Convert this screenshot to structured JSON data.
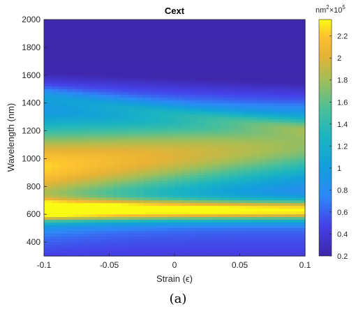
{
  "chart_data": {
    "type": "heatmap",
    "title": "Cext",
    "xlabel": "Strain (ϵ)",
    "ylabel": "Wavelength (nm)",
    "xlim": [
      -0.1,
      0.1
    ],
    "ylim": [
      300,
      2000
    ],
    "xticks": [
      "-0.1",
      "-0.05",
      "0",
      "0.05",
      "0.1"
    ],
    "yticks": [
      "400",
      "600",
      "800",
      "1000",
      "1200",
      "1400",
      "1600",
      "1800",
      "2000"
    ],
    "colorbar": {
      "label_base": "nm",
      "label_exp": "2",
      "label_times": "×10",
      "label_pow": "5",
      "range": [
        0.2,
        2.35
      ],
      "ticks": [
        "0.2",
        "0.4",
        "0.6",
        "0.8",
        "1",
        "1.2",
        "1.4",
        "1.6",
        "1.8",
        "2",
        "2.2"
      ],
      "colormap": "parula"
    },
    "grid": false
  },
  "caption": "(a)"
}
